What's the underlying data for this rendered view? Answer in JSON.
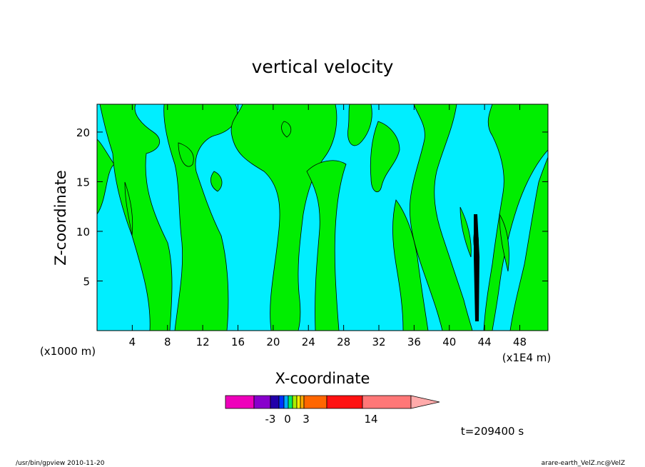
{
  "chart_data": {
    "type": "heatmap",
    "title": "vertical velocity",
    "xlabel": "X-coordinate",
    "ylabel": "Z-coordinate",
    "x_scale_note": "(x1000 m)",
    "x_unit_note": "(x1E4 m)",
    "x_ticks": [
      4,
      8,
      12,
      16,
      20,
      24,
      28,
      32,
      36,
      40,
      44,
      48
    ],
    "y_ticks": [
      5,
      10,
      15,
      20
    ],
    "xlim": [
      0,
      51.2
    ],
    "ylim": [
      0,
      22.8
    ],
    "colorbar": {
      "labels": [
        {
          "text": "-3",
          "value": -3
        },
        {
          "text": "0",
          "value": 0
        },
        {
          "text": "3",
          "value": 3
        },
        {
          "text": "14",
          "value": 14
        }
      ],
      "colors": [
        "#ee00bb",
        "#8800cc",
        "#2200aa",
        "#0033ff",
        "#00aaff",
        "#00ee66",
        "#aaee00",
        "#ffee00",
        "#ffaa00",
        "#ff6600",
        "#ff1111",
        "#ff7777",
        "#ffaaaa"
      ]
    },
    "field_colors": {
      "negative": "#00eeff",
      "positive": "#00ee00",
      "strong_positive": "#ffee00"
    },
    "time_label": "t=209400 s"
  },
  "footer": {
    "left": "/usr/bin/gpview  2010-11-20",
    "right": "arare-earth_VelZ.nc@VelZ"
  }
}
